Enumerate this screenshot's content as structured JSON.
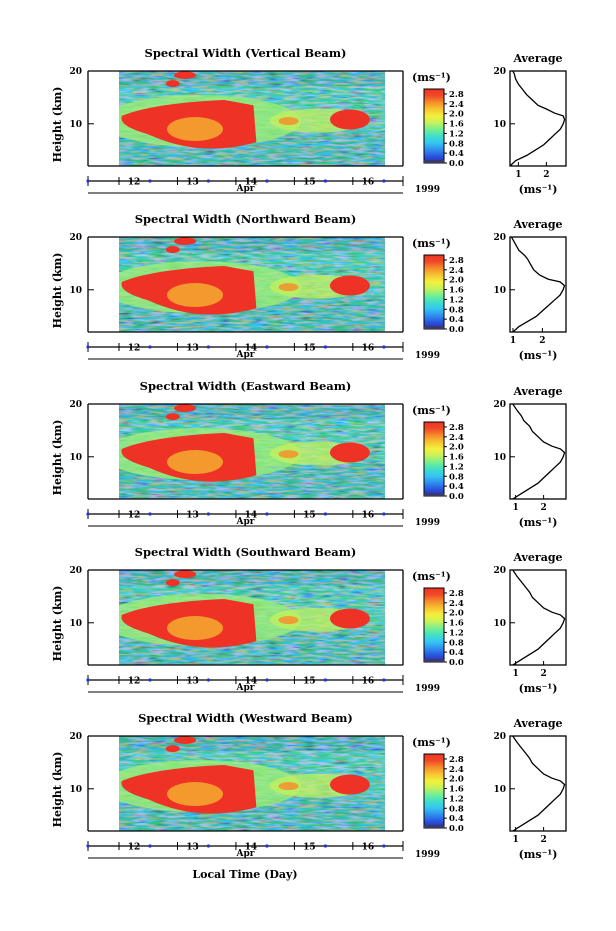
{
  "figure": {
    "bottom_xlabel": "Local Time (Day)",
    "colorbar_unit": "(ms⁻¹)",
    "average_title": "Average",
    "average_xlabel": "(ms⁻¹)"
  },
  "colorscale": [
    "#3a3a6a",
    "#2a2ab0",
    "#2a55e0",
    "#2f8fef",
    "#35c6f2",
    "#3fe0c8",
    "#77ee90",
    "#c6f25a",
    "#f3f13e",
    "#f7c531",
    "#f68e2b",
    "#f04a28",
    "#ee3326"
  ],
  "chart_data": [
    {
      "type": "heatmap",
      "title": "Spectral Width (Vertical Beam)",
      "ylabel": "Height (km)",
      "xlabel_month": "Apr",
      "year": "1999",
      "x_ticks": [
        "12",
        "13",
        "14",
        "15",
        "16"
      ],
      "y_ticks": [
        "10",
        "20"
      ],
      "ylim": [
        2,
        20
      ],
      "colorbar": {
        "ticks": [
          "0.0",
          "0.4",
          "0.8",
          "1.2",
          "1.6",
          "2.0",
          "2.4",
          "2.8"
        ],
        "range": [
          0,
          3.0
        ]
      },
      "average": {
        "x_ticks": [
          "1",
          "2"
        ],
        "xlim": [
          0.7,
          2.7
        ],
        "y_ticks": [
          "10",
          "20"
        ],
        "profile": [
          [
            0.6,
            2
          ],
          [
            0.9,
            3
          ],
          [
            1.3,
            4
          ],
          [
            1.6,
            5
          ],
          [
            1.9,
            6
          ],
          [
            2.1,
            7
          ],
          [
            2.3,
            8
          ],
          [
            2.5,
            9
          ],
          [
            2.6,
            10
          ],
          [
            2.65,
            10.8
          ],
          [
            2.6,
            11.5
          ],
          [
            2.3,
            12
          ],
          [
            2.0,
            12.8
          ],
          [
            1.7,
            13.5
          ],
          [
            1.5,
            14.5
          ],
          [
            1.3,
            15.5
          ],
          [
            1.15,
            16.5
          ],
          [
            1.0,
            17.5
          ],
          [
            0.9,
            18.5
          ],
          [
            0.85,
            19.5
          ],
          [
            0.8,
            20
          ]
        ]
      }
    },
    {
      "type": "heatmap",
      "title": "Spectral Width (Northward Beam)",
      "ylabel": "Height (km)",
      "xlabel_month": "Apr",
      "year": "1999",
      "x_ticks": [
        "12",
        "13",
        "14",
        "15",
        "16"
      ],
      "y_ticks": [
        "10",
        "20"
      ],
      "ylim": [
        2,
        20
      ],
      "colorbar": {
        "ticks": [
          "0.0",
          "0.4",
          "0.8",
          "1.2",
          "1.6",
          "2.0",
          "2.4",
          "2.8"
        ],
        "range": [
          0,
          3.0
        ]
      },
      "average": {
        "x_ticks": [
          "1",
          "2"
        ],
        "xlim": [
          0.9,
          2.8
        ],
        "y_ticks": [
          "10",
          "20"
        ],
        "profile": [
          [
            1.0,
            2
          ],
          [
            1.2,
            3
          ],
          [
            1.5,
            4
          ],
          [
            1.8,
            5
          ],
          [
            2.0,
            6
          ],
          [
            2.2,
            7
          ],
          [
            2.4,
            8
          ],
          [
            2.6,
            9
          ],
          [
            2.7,
            10
          ],
          [
            2.75,
            10.8
          ],
          [
            2.6,
            11.5
          ],
          [
            2.2,
            12
          ],
          [
            1.9,
            12.8
          ],
          [
            1.7,
            13.8
          ],
          [
            1.6,
            14.8
          ],
          [
            1.5,
            15.8
          ],
          [
            1.4,
            16.5
          ],
          [
            1.2,
            17.5
          ],
          [
            1.1,
            18.5
          ],
          [
            1.0,
            19.5
          ],
          [
            0.95,
            20
          ]
        ]
      }
    },
    {
      "type": "heatmap",
      "title": "Spectral Width (Eastward Beam)",
      "ylabel": "Height (km)",
      "xlabel_month": "Apr",
      "year": "1999",
      "x_ticks": [
        "12",
        "13",
        "14",
        "15",
        "16"
      ],
      "y_ticks": [
        "10",
        "20"
      ],
      "ylim": [
        2,
        20
      ],
      "colorbar": {
        "ticks": [
          "0.0",
          "0.4",
          "0.8",
          "1.2",
          "1.6",
          "2.0",
          "2.4",
          "2.8"
        ],
        "range": [
          0,
          3.0
        ]
      },
      "average": {
        "x_ticks": [
          "1",
          "2"
        ],
        "xlim": [
          0.8,
          2.8
        ],
        "y_ticks": [
          "10",
          "20"
        ],
        "profile": [
          [
            0.9,
            2
          ],
          [
            1.2,
            3
          ],
          [
            1.5,
            4
          ],
          [
            1.8,
            5
          ],
          [
            2.0,
            6
          ],
          [
            2.2,
            7
          ],
          [
            2.4,
            8
          ],
          [
            2.6,
            9
          ],
          [
            2.7,
            10
          ],
          [
            2.75,
            10.8
          ],
          [
            2.6,
            11.5
          ],
          [
            2.3,
            12
          ],
          [
            2.0,
            12.8
          ],
          [
            1.8,
            13.8
          ],
          [
            1.6,
            14.8
          ],
          [
            1.5,
            15.8
          ],
          [
            1.3,
            16.8
          ],
          [
            1.2,
            17.8
          ],
          [
            1.05,
            18.8
          ],
          [
            0.95,
            19.6
          ],
          [
            0.9,
            20
          ]
        ]
      }
    },
    {
      "type": "heatmap",
      "title": "Spectral Width (Southward Beam)",
      "ylabel": "Height (km)",
      "xlabel_month": "Apr",
      "year": "1999",
      "x_ticks": [
        "12",
        "13",
        "14",
        "15",
        "16"
      ],
      "y_ticks": [
        "10",
        "20"
      ],
      "ylim": [
        2,
        20
      ],
      "colorbar": {
        "ticks": [
          "0.0",
          "0.4",
          "0.8",
          "1.2",
          "1.6",
          "2.0",
          "2.4",
          "2.8"
        ],
        "range": [
          0,
          3.0
        ]
      },
      "average": {
        "x_ticks": [
          "1",
          "2"
        ],
        "xlim": [
          0.8,
          2.8
        ],
        "y_ticks": [
          "10",
          "20"
        ],
        "profile": [
          [
            0.9,
            2
          ],
          [
            1.2,
            3
          ],
          [
            1.5,
            4
          ],
          [
            1.8,
            5
          ],
          [
            2.0,
            6
          ],
          [
            2.2,
            7
          ],
          [
            2.4,
            8
          ],
          [
            2.6,
            9
          ],
          [
            2.7,
            10
          ],
          [
            2.75,
            10.8
          ],
          [
            2.6,
            11.5
          ],
          [
            2.3,
            12
          ],
          [
            2.0,
            12.8
          ],
          [
            1.8,
            13.8
          ],
          [
            1.6,
            14.8
          ],
          [
            1.5,
            15.8
          ],
          [
            1.35,
            16.8
          ],
          [
            1.2,
            17.8
          ],
          [
            1.05,
            18.8
          ],
          [
            0.95,
            19.6
          ],
          [
            0.9,
            20
          ]
        ]
      }
    },
    {
      "type": "heatmap",
      "title": "Spectral Width (Westward Beam)",
      "ylabel": "Height (km)",
      "xlabel_month": "Apr",
      "year": "1999",
      "x_ticks": [
        "12",
        "13",
        "14",
        "15",
        "16"
      ],
      "y_ticks": [
        "10",
        "20"
      ],
      "ylim": [
        2,
        20
      ],
      "colorbar": {
        "ticks": [
          "0.0",
          "0.4",
          "0.8",
          "1.2",
          "1.6",
          "2.0",
          "2.4",
          "2.8"
        ],
        "range": [
          0,
          3.0
        ]
      },
      "average": {
        "x_ticks": [
          "1",
          "2"
        ],
        "xlim": [
          0.8,
          2.8
        ],
        "y_ticks": [
          "10",
          "20"
        ],
        "profile": [
          [
            0.9,
            2
          ],
          [
            1.2,
            3
          ],
          [
            1.5,
            4
          ],
          [
            1.8,
            5
          ],
          [
            2.0,
            6
          ],
          [
            2.2,
            7
          ],
          [
            2.4,
            8
          ],
          [
            2.6,
            9
          ],
          [
            2.7,
            10
          ],
          [
            2.75,
            10.8
          ],
          [
            2.6,
            11.5
          ],
          [
            2.3,
            12
          ],
          [
            2.0,
            12.8
          ],
          [
            1.8,
            13.8
          ],
          [
            1.6,
            14.8
          ],
          [
            1.5,
            15.8
          ],
          [
            1.35,
            16.8
          ],
          [
            1.2,
            17.8
          ],
          [
            1.05,
            18.8
          ],
          [
            0.95,
            19.6
          ],
          [
            0.9,
            20
          ]
        ]
      }
    }
  ]
}
